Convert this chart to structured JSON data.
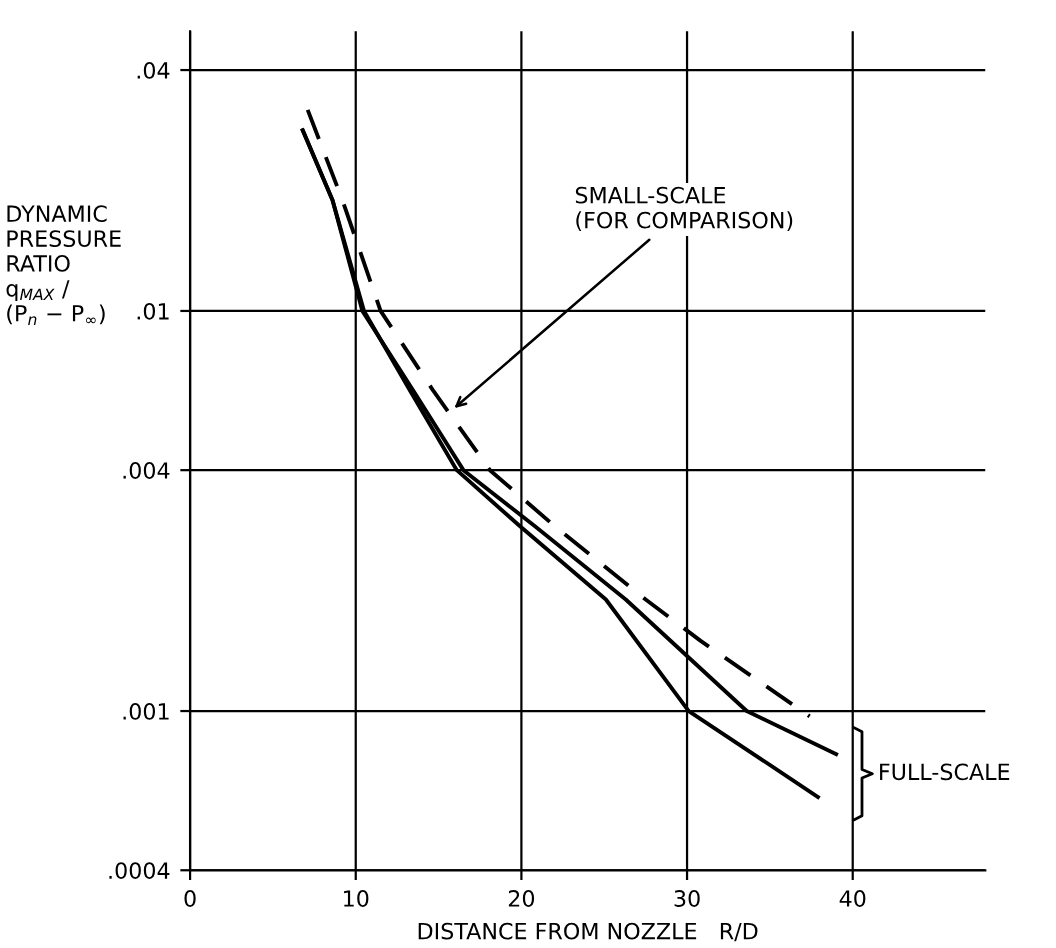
{
  "chart_data": {
    "type": "line",
    "xlabel": "DISTANCE FROM NOZZLE   R/D",
    "ylabel": "DYNAMIC\nPRESSURE\nRATIO\nq$_{MAX}$ /\n(P$_{n}$ − P$_{∞}$)",
    "log": "y",
    "xlim": [
      0,
      48
    ],
    "ylim": [
      0.0004,
      0.05
    ],
    "xticks": [
      0,
      10,
      20,
      30,
      40
    ],
    "yticks": [
      {
        "value": 0.0004,
        "label": ".0004"
      },
      {
        "value": 0.001,
        "label": ".001"
      },
      {
        "value": 0.004,
        "label": ".004"
      },
      {
        "value": 0.01,
        "label": ".01"
      },
      {
        "value": 0.04,
        "label": ".04"
      }
    ],
    "grid": true,
    "marker": "none",
    "series": [
      {
        "color": "#000000",
        "line_style": "dashed",
        "x": [
          7.1,
          9.2,
          11.5,
          14.7,
          18.1,
          22.0,
          27.5,
          30.8,
          37.4
        ],
        "values": [
          0.0318,
          0.0189,
          0.01,
          0.0063,
          0.004,
          0.0029,
          0.0019,
          0.0015,
          0.00097
        ]
      },
      {
        "color": "#000000",
        "line_style": "solid",
        "x": [
          6.8,
          8.6,
          10.4,
          13.5,
          16.5,
          20.8,
          26.3,
          33.6,
          39.0
        ],
        "values": [
          0.0283,
          0.0189,
          0.01,
          0.0063,
          0.004,
          0.0029,
          0.0019,
          0.001,
          0.00078
        ]
      },
      {
        "color": "#000000",
        "line_style": "solid",
        "x": [
          6.8,
          8.6,
          10.5,
          13.3,
          16.1,
          19.9,
          25.1,
          30.1,
          37.9
        ],
        "values": [
          0.0283,
          0.0189,
          0.01,
          0.0063,
          0.004,
          0.0029,
          0.0019,
          0.001,
          0.00061
        ]
      }
    ],
    "annotations": [
      {
        "text": "SMALL-SCALE\n(FOR COMPARISON)",
        "x": 15.7,
        "y": 0.0056
      },
      "FULL-SCALE"
    ]
  }
}
